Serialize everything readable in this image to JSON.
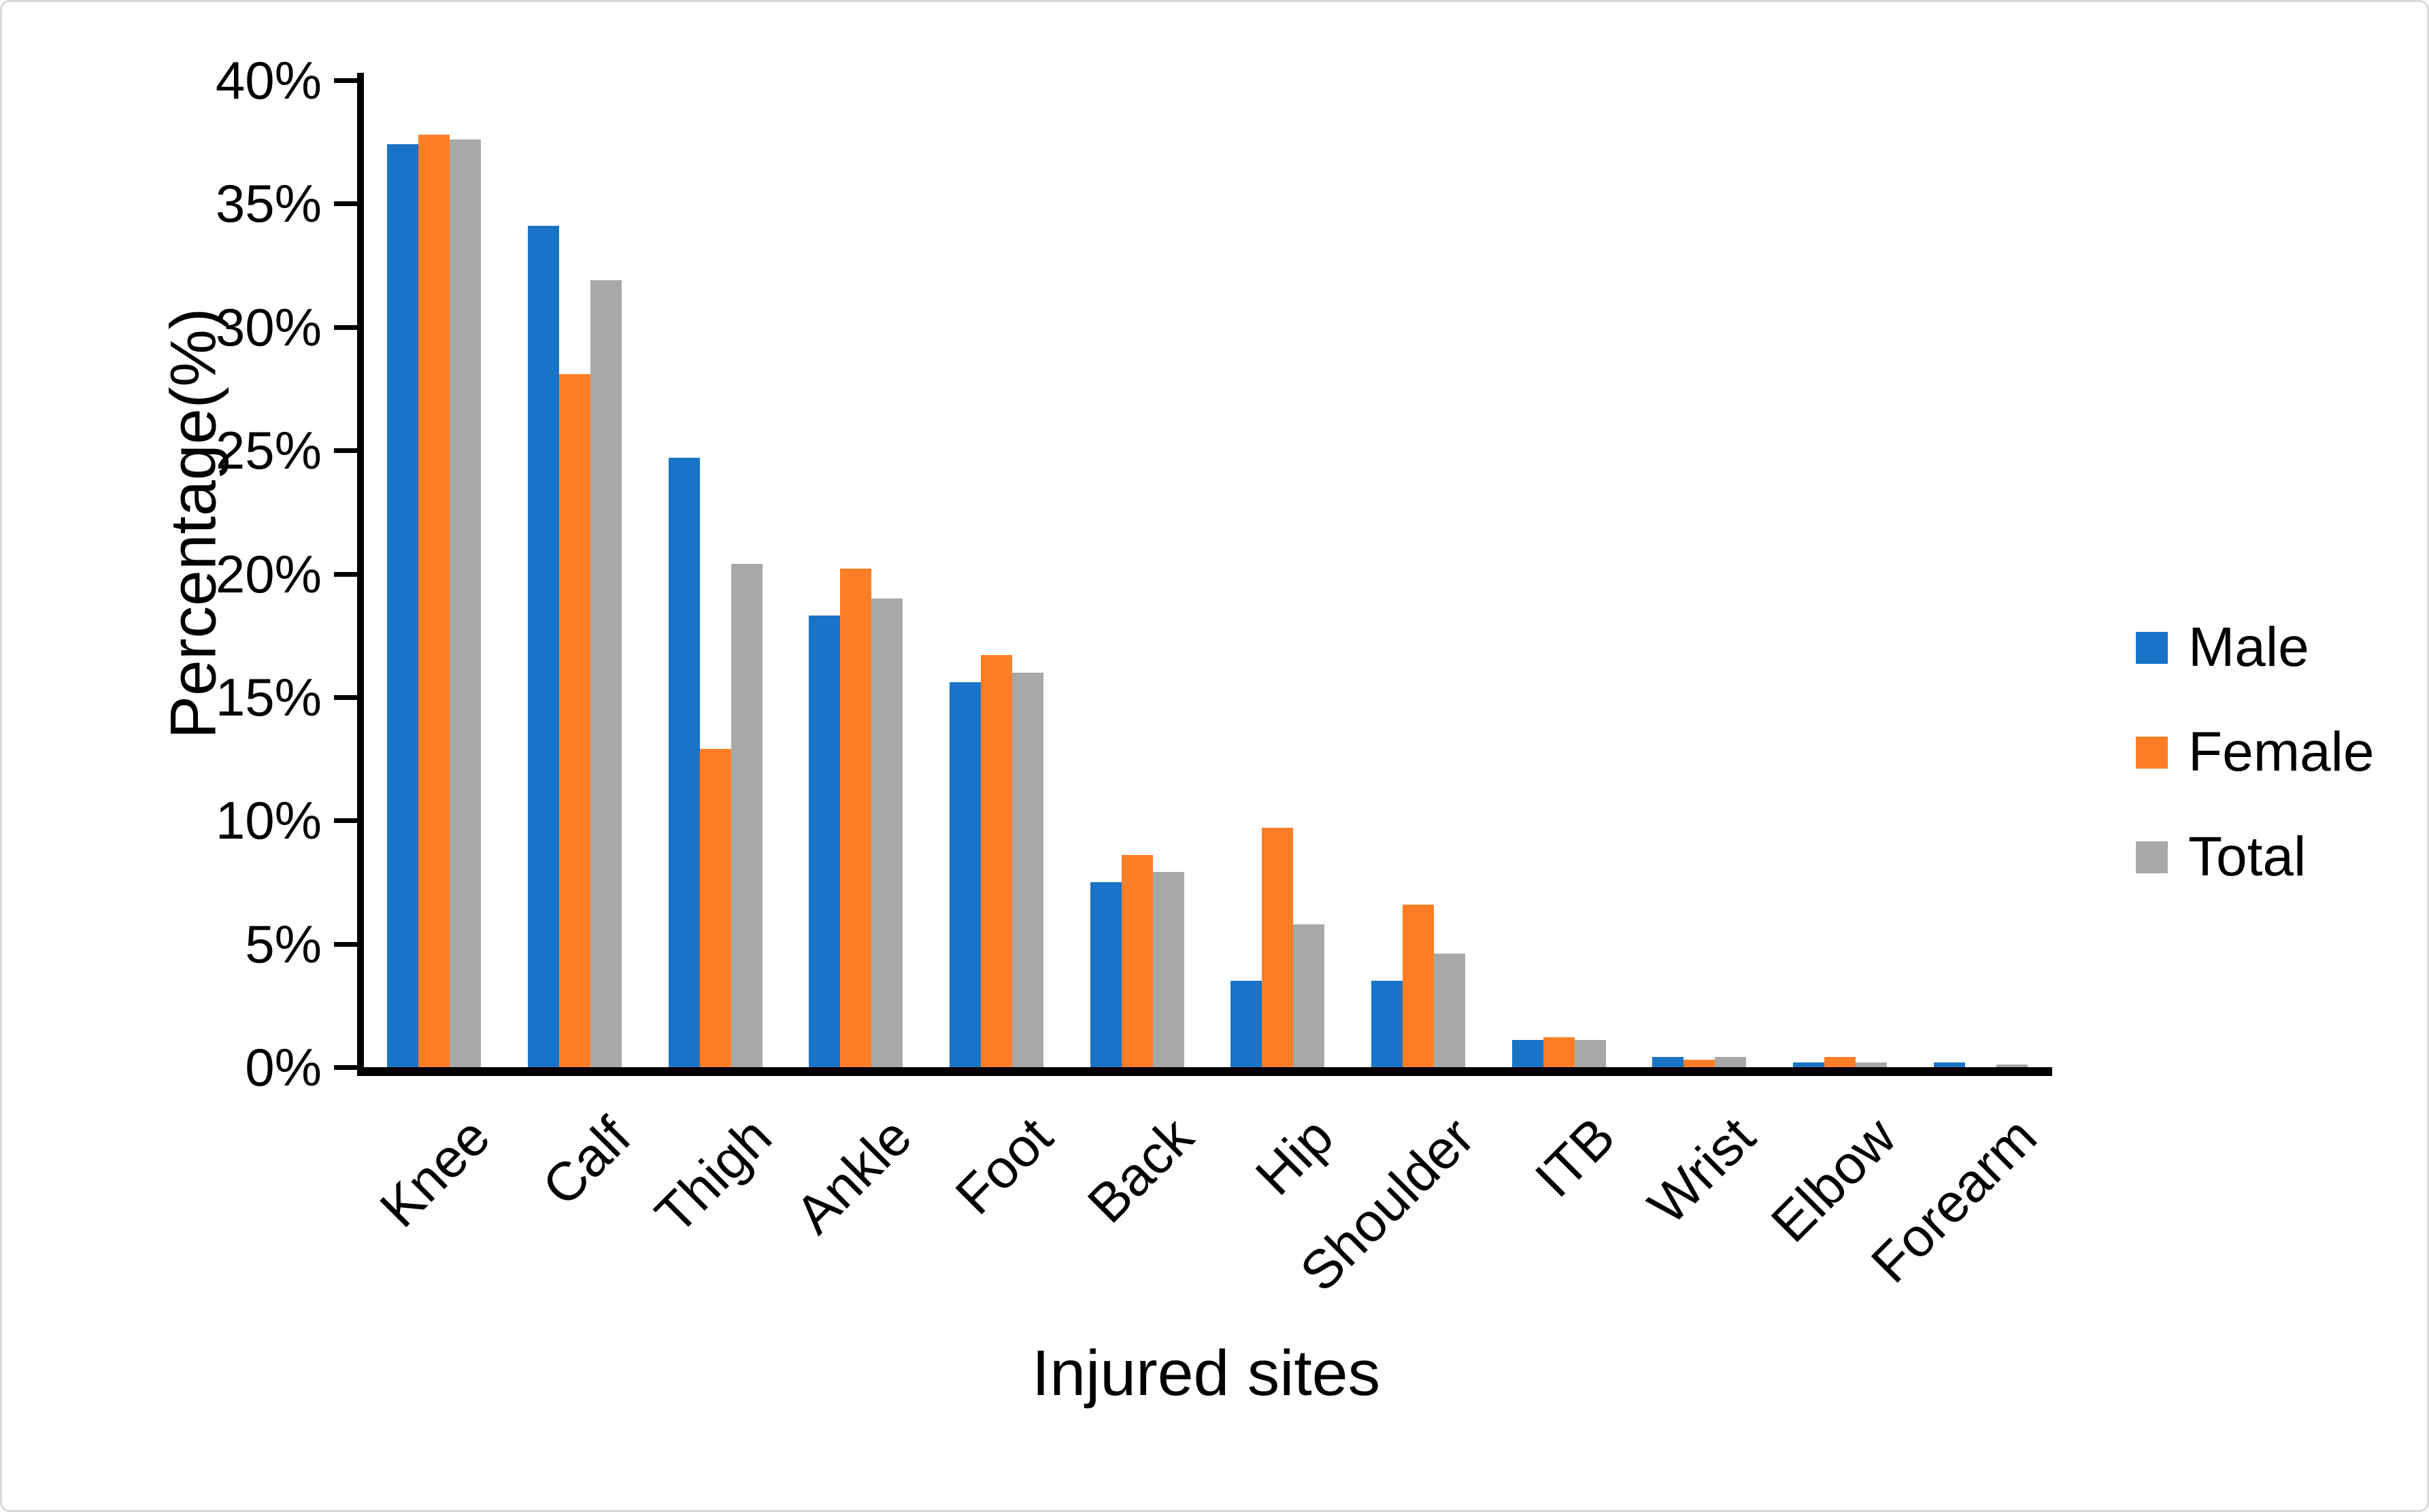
{
  "figure": {
    "background": "#ffffff",
    "border_color": "#d9d9d9",
    "axis_color": "#000000"
  },
  "chart_data": {
    "type": "bar",
    "title": "",
    "xlabel": "Injured sites",
    "ylabel": "Percentage(%)",
    "categories": [
      "Knee",
      "Calf",
      "Thigh",
      "Ankle",
      "Foot",
      "Back",
      "Hip",
      "Shoulder",
      "ITB",
      "Wrist",
      "Elbow",
      "Forearm"
    ],
    "series": [
      {
        "name": "Male",
        "color": "#1974C8",
        "values": [
          37.4,
          34.1,
          24.7,
          18.3,
          15.6,
          7.5,
          3.5,
          3.5,
          1.1,
          0.4,
          0.2,
          0.2
        ]
      },
      {
        "name": "Female",
        "color": "#FE7E27",
        "values": [
          37.8,
          28.1,
          12.9,
          20.2,
          16.7,
          8.6,
          9.7,
          6.6,
          1.2,
          0.3,
          0.4,
          0.0
        ]
      },
      {
        "name": "Total",
        "color": "#A8A8A8",
        "values": [
          37.6,
          31.9,
          20.4,
          19.0,
          16.0,
          7.9,
          5.8,
          4.6,
          1.1,
          0.4,
          0.2,
          0.1
        ]
      }
    ],
    "y_axis": {
      "min": 0,
      "max": 40,
      "step": 5,
      "tick_labels": [
        "0%",
        "5%",
        "10%",
        "15%",
        "20%",
        "25%",
        "30%",
        "35%",
        "40%"
      ]
    },
    "legend_position": "right",
    "grid": false
  }
}
